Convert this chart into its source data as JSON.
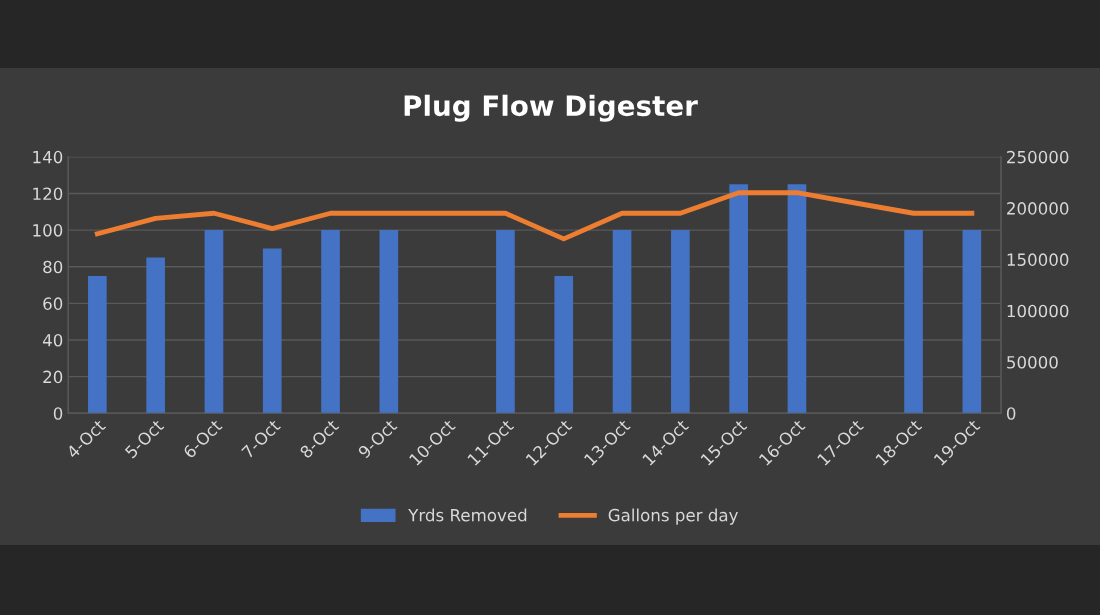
{
  "chart_data": {
    "type": "bar",
    "title": "Plug Flow Digester",
    "categories": [
      "4-Oct",
      "5-Oct",
      "6-Oct",
      "7-Oct",
      "8-Oct",
      "9-Oct",
      "10-Oct",
      "11-Oct",
      "12-Oct",
      "13-Oct",
      "14-Oct",
      "15-Oct",
      "16-Oct",
      "17-Oct",
      "18-Oct",
      "19-Oct"
    ],
    "series": [
      {
        "name": "Yrds Removed",
        "color": "#4472c4",
        "values": [
          75,
          85,
          100,
          90,
          100,
          100,
          null,
          100,
          75,
          100,
          100,
          125,
          125,
          null,
          100,
          100
        ]
      },
      {
        "name": "Gallons per day",
        "type": "line",
        "axis": "y2",
        "color": "#ed7d31",
        "values": [
          175000,
          190000,
          195000,
          180000,
          195000,
          195000,
          195000,
          195000,
          170000,
          195000,
          195000,
          215000,
          215000,
          205000,
          195000,
          195000
        ]
      }
    ],
    "ylim": [
      0,
      140
    ],
    "yticks": [
      0,
      20,
      40,
      60,
      80,
      100,
      120,
      140
    ],
    "y2lim": [
      0,
      250000
    ],
    "y2ticks": [
      0,
      50000,
      100000,
      150000,
      200000,
      250000
    ],
    "grid": "y",
    "legend": "bottom",
    "marker": "none",
    "line_style": "solid"
  }
}
